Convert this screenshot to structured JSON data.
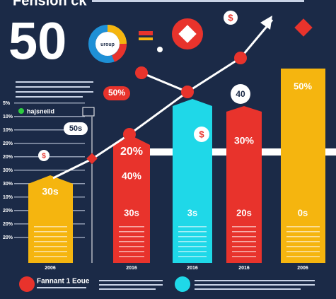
{
  "title": "Fension ck",
  "headline": "50",
  "donut_label": "uroup",
  "currency_symbol": "$",
  "legend": "hajsneiid",
  "callouts": [
    "50%",
    "50s",
    "40"
  ],
  "y_axis": [
    "5%",
    "10%",
    "10%",
    "20%",
    "20%",
    "30%",
    "30%",
    "10%",
    "20%",
    "20%",
    "20%"
  ],
  "bars": [
    {
      "labels": [
        "30s"
      ],
      "year": "2006"
    },
    {
      "labels": [
        "20%",
        "40%",
        "30s"
      ],
      "year": "2016"
    },
    {
      "labels": [
        "3s"
      ],
      "year": "2016"
    },
    {
      "labels": [
        "30%",
        "20s"
      ],
      "year": "2016"
    },
    {
      "labels": [
        "50%",
        "0s"
      ],
      "year": "2006"
    }
  ],
  "footer": {
    "left": "Fannant 1 Eoue"
  }
}
